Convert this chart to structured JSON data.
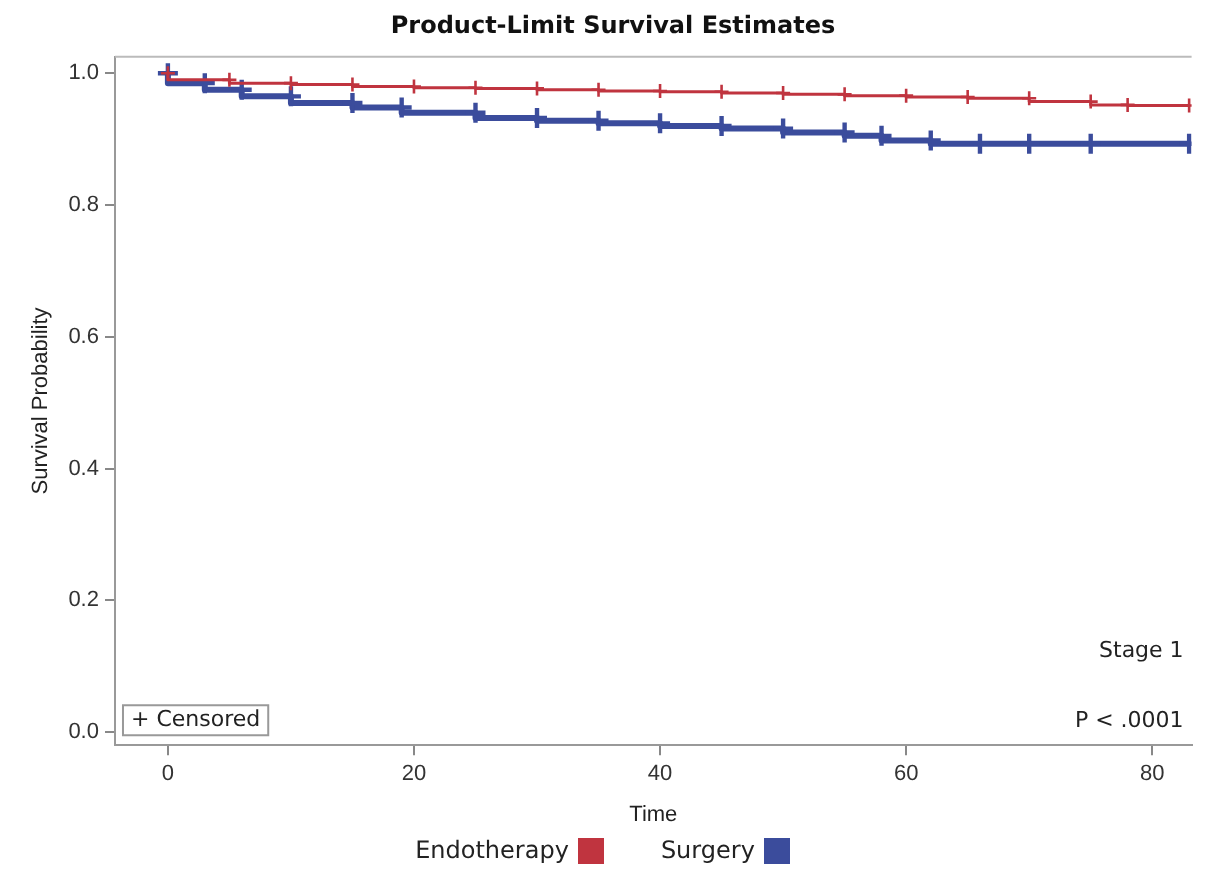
{
  "chart_data": {
    "type": "step",
    "title": "Product-Limit Survival Estimates",
    "xlabel": "Time",
    "ylabel": "Survival Probability",
    "xlim": [
      -4.3,
      83.2
    ],
    "xticks": [
      0,
      20,
      40,
      60,
      80
    ],
    "ylim": [
      -0.02,
      1.025
    ],
    "yticks": [
      {
        "value": 0,
        "label": "0.0"
      },
      0.2,
      0.4,
      0.6,
      0.8,
      {
        "value": 1,
        "label": "1.0"
      }
    ],
    "grid": false,
    "legend": "bottom",
    "marker": "cross",
    "line_style": "solid",
    "annotations": [
      "+ Censored",
      "Stage 1",
      "P < .0001"
    ],
    "series": [
      {
        "name": "Endotherapy",
        "color": "#c0343f",
        "x": [
          0,
          5,
          10,
          15,
          20,
          25,
          30,
          35,
          40,
          45,
          50,
          55,
          60,
          65,
          70,
          75,
          78,
          83
        ],
        "values": [
          1.0,
          0.99,
          0.985,
          0.983,
          0.98,
          0.978,
          0.977,
          0.975,
          0.973,
          0.972,
          0.97,
          0.968,
          0.966,
          0.964,
          0.962,
          0.957,
          0.952,
          0.951
        ]
      },
      {
        "name": "Surgery",
        "color": "#3b4c9c",
        "x": [
          0,
          3,
          6,
          10,
          15,
          19,
          25,
          30,
          35,
          40,
          45,
          50,
          55,
          58,
          62,
          66,
          70,
          75,
          83
        ],
        "values": [
          1.0,
          0.985,
          0.975,
          0.965,
          0.955,
          0.948,
          0.94,
          0.932,
          0.928,
          0.924,
          0.92,
          0.916,
          0.91,
          0.905,
          0.898,
          0.893,
          0.893,
          0.893,
          0.893
        ]
      }
    ]
  }
}
